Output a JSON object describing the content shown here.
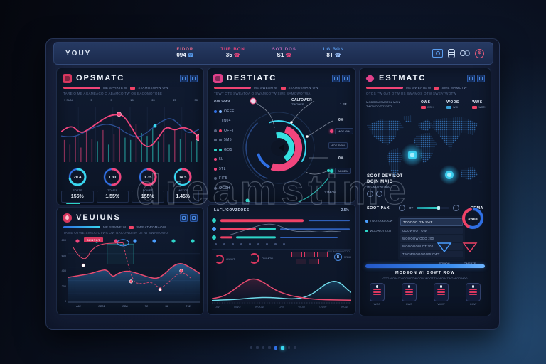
{
  "watermark_text": "dreamstime",
  "colors": {
    "accent_red": "#ef4266",
    "accent_pink": "#f0457d",
    "accent_teal": "#2dd4c8",
    "accent_blue": "#2f6fe4",
    "accent_cyan": "#39d7f0"
  },
  "topbar": {
    "brand": "YOUY",
    "stats": [
      {
        "label": "FIDOR",
        "value": "094",
        "label_color": "#e86a8a",
        "icon_color": "#5a9ef0"
      },
      {
        "label": "TUR BON",
        "value": "35",
        "label_color": "#f0457d",
        "icon_color": "#f0457d"
      },
      {
        "label": "SOT DOS",
        "value": "S1",
        "label_color": "#c06ab8",
        "icon_color": "#f0457d"
      },
      {
        "label": "LG BON",
        "value": "8T",
        "label_color": "#5a9ef0",
        "icon_color": "#9fc6ff"
      }
    ],
    "icons": [
      "camera-icon",
      "database-icon",
      "link-icon",
      "currency-icon"
    ],
    "currency_symbol": "$"
  },
  "ops": {
    "title": "OPSMATC",
    "sub1a": "ME SPARTE W",
    "sub1b": "STAMOSWAW OW",
    "sub2": "TARE O ME AGAMEACO O ABAMCO TW OS BACOMOTOBE",
    "axis_top": [
      "1 SUN",
      "5",
      "9",
      "15",
      "20",
      "25",
      "30"
    ],
    "gauges": [
      {
        "value": "20.4",
        "label": "SOATS",
        "base": "#2f6fe4",
        "arc": "#39d7f0",
        "frac": 0.72
      },
      {
        "value": "1.30",
        "label": "TOMES",
        "base": "#2f6fe4",
        "arc": "#f0457d",
        "frac": 0.5
      },
      {
        "value": "1.35",
        "label": "SOMET",
        "base": "#2f6fe4",
        "arc": "#f0457d",
        "frac": 0.62
      },
      {
        "value": "14.5",
        "label": "MOTOS",
        "base": "#39d7f0",
        "arc": "#f0457d",
        "frac": 0.32
      }
    ],
    "stats": [
      "155%",
      "1.55%",
      "155%",
      "1.45%"
    ],
    "chart": {
      "type": "line",
      "pink": [
        [
          0,
          48
        ],
        [
          7,
          34
        ],
        [
          14,
          52
        ],
        [
          21,
          42
        ],
        [
          28,
          30
        ],
        [
          35,
          20
        ],
        [
          42,
          18
        ],
        [
          46,
          22
        ],
        [
          52,
          44
        ],
        [
          58,
          68
        ],
        [
          64,
          76
        ],
        [
          70,
          60
        ],
        [
          76,
          38
        ],
        [
          82,
          46
        ],
        [
          88,
          40
        ],
        [
          94,
          44
        ],
        [
          100,
          58
        ]
      ],
      "blue": [
        [
          0,
          55
        ],
        [
          8,
          58
        ],
        [
          16,
          50
        ],
        [
          24,
          40
        ],
        [
          32,
          34
        ],
        [
          40,
          38
        ],
        [
          48,
          52
        ],
        [
          56,
          58
        ],
        [
          62,
          50
        ],
        [
          68,
          38
        ],
        [
          74,
          28
        ],
        [
          80,
          24
        ],
        [
          86,
          36
        ],
        [
          92,
          52
        ],
        [
          100,
          44
        ]
      ],
      "pink_dots": [
        [
          42,
          18
        ],
        [
          100,
          58
        ]
      ],
      "blue_dots": [
        [
          68,
          38
        ]
      ],
      "bars": [
        [
          2,
          38,
          "p"
        ],
        [
          6,
          30,
          "p"
        ],
        [
          10,
          45,
          "p"
        ],
        [
          14,
          25,
          "p"
        ],
        [
          18,
          52,
          "p"
        ],
        [
          22,
          40,
          "p"
        ],
        [
          26,
          35,
          "t"
        ],
        [
          30,
          55,
          "p"
        ],
        [
          34,
          30,
          "t"
        ],
        [
          38,
          48,
          "p"
        ],
        [
          42,
          60,
          "p"
        ],
        [
          46,
          42,
          "t"
        ],
        [
          50,
          38,
          "t"
        ],
        [
          54,
          65,
          "p"
        ],
        [
          58,
          50,
          "t"
        ],
        [
          62,
          45,
          "t"
        ],
        [
          66,
          58,
          "t"
        ],
        [
          70,
          35,
          "t"
        ],
        [
          74,
          48,
          "p"
        ],
        [
          78,
          30,
          "t"
        ],
        [
          82,
          55,
          "p"
        ],
        [
          86,
          40,
          "t"
        ],
        [
          90,
          50,
          "p"
        ],
        [
          94,
          35,
          "t"
        ],
        [
          98,
          45,
          "t"
        ]
      ]
    }
  },
  "dest": {
    "title": "DESTIATC",
    "sub1a": "ME SWEAM W",
    "sub1b": "STAMOSWAW OW",
    "sub2": "TEWT OTE SWEATOA O SWAMCOTW SWE SAMOWOTWA",
    "legend_header": "OW WWA",
    "legend": [
      {
        "dots": [
          "#2f6fe4",
          "#7fb6ff"
        ],
        "label": "OFFF"
      },
      {
        "dots": [],
        "label": "TN04"
      },
      {
        "dots": [
          "#55637f",
          "#ef4266"
        ],
        "label": "OFFT"
      },
      {
        "dots": [
          "#55637f",
          "#55637f"
        ],
        "label": "5M5"
      },
      {
        "dots": [
          "#2dd4c8",
          "#2dd4c8"
        ],
        "label": "GO5"
      },
      {
        "dots": [
          "#f0457d"
        ],
        "label": "5L"
      },
      {
        "dots": [
          "#f0457d"
        ],
        "label": "5TL"
      },
      {
        "dots": [
          "#55637f"
        ],
        "label": "FIF5"
      },
      {
        "dots": [
          "#55637f"
        ],
        "label": "OG0H"
      }
    ],
    "callouts": {
      "top1": "GALTOWER",
      "top2": "TWOHER",
      "pe": "1 PE",
      "p1": "0%",
      "moe": "MOE OIM",
      "aoe": "AOE SOM",
      "p2": "0%",
      "aog": "AOGEM",
      "bot": "1.7M 0%."
    },
    "donut": {
      "type": "pie",
      "segments": [
        {
          "color": "#39d7f0",
          "span": 0.38
        },
        {
          "color": "#f0457d",
          "span": 0.42
        },
        {
          "color": "#2f6fe4",
          "span": 0.2
        }
      ]
    }
  },
  "est": {
    "title": "ESTMATC",
    "sub1a": "ME SWEATE W",
    "sub1b": "SWE MAMOTW",
    "sub2": "OTOS TW OAT OTW OS SWAMOS OTW SWEATWOTW",
    "lefthead1": "MODOOM SMOTOL MON",
    "lefthead2": "TWOMOD TOTOTOL",
    "cols": [
      {
        "h": "OWS",
        "chip": "#ef4266",
        "t": "WOH"
      },
      {
        "h": "WODS",
        "chip": "#39a0d7",
        "t": "WOH"
      },
      {
        "h": "WWS",
        "chip": "#ef4266",
        "t": "WOTH"
      }
    ],
    "map1": "SOOT DEVILOT",
    "map2": "DOIN MAIC",
    "map3": "OTOMOTWTOLA",
    "pax": "SOOT PAX",
    "prog_label": "OT",
    "prog_right": "GEMA",
    "bullets": [
      "TWOTOOD OOW",
      "WOOW OT OOT"
    ],
    "list": [
      "TOOOOO OW SWE",
      "OOOWOOT OW",
      "WOOOOW OOO 200",
      "WOOOOOW OT 200",
      "TWOWOOOOOOW OWT"
    ],
    "donut_label": "SWEB",
    "tri": [
      {
        "label": "SOMOH",
        "color": "#4a9eff"
      },
      {
        "label": "OMEBTE",
        "color": "#ef4266"
      }
    ],
    "section_title": "MODEON WI SOWT ROW",
    "section_text": "OOO WOW O WOOWOOW OOW WOOT TW WOW TWO WOOWOO",
    "badges": [
      "WOO",
      "OWO",
      "WOW",
      "OOW"
    ]
  },
  "veu": {
    "title": "VEUIUNS",
    "sub1a": "ME SPAWE W",
    "sub1b": "SWEATWOMAOW",
    "sub2": "TAWE OTWE SWEATOTWA OW BACOWOTW OT W SWAMOWO",
    "annotation": "SEBTOT",
    "chart": {
      "type": "area",
      "yticks": [
        "800",
        "600",
        "400",
        "200",
        "0"
      ],
      "xticks": [
        "A62",
        "OB01",
        "OB8",
        "T2",
        "B2",
        "T62"
      ],
      "top_dots": [
        "#f0457d",
        "#2dd4c8",
        "#f0457d",
        "#4a9eff",
        "#4a9eff",
        "#2dd4c8",
        "#2dd4c8"
      ],
      "area": [
        [
          0,
          62
        ],
        [
          6,
          60
        ],
        [
          12,
          58
        ],
        [
          18,
          56
        ],
        [
          24,
          52
        ],
        [
          30,
          50
        ],
        [
          34,
          62
        ],
        [
          38,
          56
        ],
        [
          44,
          52
        ],
        [
          50,
          54
        ],
        [
          56,
          58
        ],
        [
          62,
          62
        ],
        [
          68,
          64
        ],
        [
          74,
          56
        ],
        [
          80,
          44
        ],
        [
          86,
          40
        ],
        [
          92,
          46
        ],
        [
          100,
          56
        ]
      ],
      "spike": [
        [
          4,
          16
        ],
        [
          12,
          44
        ],
        [
          20,
          12
        ],
        [
          42,
          10
        ]
      ],
      "dashed": [
        [
          42,
          10
        ],
        [
          48,
          68
        ],
        [
          56,
          72
        ],
        [
          64,
          68
        ],
        [
          70,
          80
        ],
        [
          78,
          66
        ],
        [
          86,
          52
        ],
        [
          94,
          64
        ]
      ],
      "dots": [
        [
          12,
          44,
          "w"
        ],
        [
          48,
          68,
          "r"
        ],
        [
          70,
          80,
          "w"
        ],
        [
          86,
          52,
          "r"
        ]
      ]
    }
  },
  "bars": {
    "title": "LAFL/COVZEOES",
    "pct": "2.5%",
    "footnote": "OW WOWOOTOO",
    "w1": "OWOT",
    "w2": "OWMOD",
    "w3": "WOO",
    "rows": [
      {
        "icon": "#2dd4c8",
        "segs": [
          [
            "#ef4266",
            1,
            63,
            3.6
          ],
          [
            "#2f5fb8",
            68,
            31,
            1.8
          ]
        ]
      },
      {
        "icon": "#4a9eff",
        "segs": [
          [
            "#ef4266",
            1,
            27,
            3.2
          ],
          [
            "#2dd4c8",
            30,
            13,
            3.2
          ],
          [
            "#2f5fb8",
            46,
            53,
            1.6
          ]
        ]
      },
      {
        "icon": "#2dd4c8",
        "segs": [
          [
            "#ef4266",
            1,
            9,
            3.2
          ],
          [
            "#2dd4c8",
            13,
            30,
            3.2
          ],
          [
            "#2f5fb8",
            46,
            44,
            2
          ]
        ]
      }
    ],
    "gray_line": [
      [
        8,
        70
      ],
      [
        18,
        55
      ],
      [
        28,
        38
      ],
      [
        36,
        28
      ],
      [
        44,
        32
      ],
      [
        52,
        50
      ],
      [
        60,
        58
      ],
      [
        68,
        55
      ],
      [
        76,
        60
      ],
      [
        84,
        55
      ],
      [
        92,
        58
      ]
    ]
  },
  "wave": {
    "type": "line",
    "red": [
      [
        0,
        82
      ],
      [
        6,
        78
      ],
      [
        12,
        66
      ],
      [
        18,
        46
      ],
      [
        24,
        26
      ],
      [
        29,
        18
      ],
      [
        34,
        22
      ],
      [
        40,
        38
      ],
      [
        46,
        56
      ],
      [
        52,
        66
      ],
      [
        58,
        74
      ],
      [
        66,
        80
      ],
      [
        74,
        84
      ],
      [
        84,
        86
      ],
      [
        100,
        87
      ]
    ],
    "teal": [
      [
        0,
        88
      ],
      [
        8,
        86
      ],
      [
        16,
        85
      ],
      [
        24,
        82
      ],
      [
        32,
        79
      ],
      [
        40,
        78
      ],
      [
        48,
        80
      ],
      [
        56,
        83
      ],
      [
        62,
        82
      ],
      [
        68,
        76
      ],
      [
        74,
        62
      ],
      [
        80,
        40
      ],
      [
        85,
        28
      ],
      [
        89,
        26
      ],
      [
        93,
        34
      ],
      [
        97,
        52
      ],
      [
        100,
        62
      ]
    ],
    "xticks": [
      "OW",
      "OWO",
      "WOOW",
      "OW",
      "WOO",
      "OWW",
      "WOW"
    ]
  },
  "pagination": {
    "count": 8,
    "active": [
      4,
      5
    ]
  }
}
